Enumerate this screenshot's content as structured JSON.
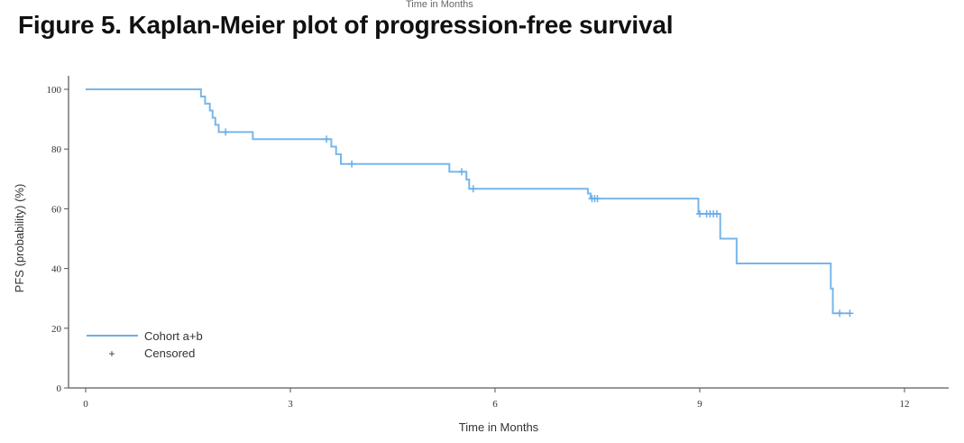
{
  "top_cut_text": "Time in Months",
  "chart_data": {
    "type": "line",
    "subtype": "kaplan-meier step",
    "title": "Figure 5. Kaplan-Meier plot of progression-free survival",
    "xlabel": "Time in Months",
    "ylabel": "PFS (probability) (%)",
    "xlim": [
      0,
      12.6
    ],
    "ylim": [
      0,
      100
    ],
    "xticks": [
      0,
      3,
      6,
      9,
      12
    ],
    "yticks": [
      0,
      20,
      40,
      60,
      80,
      100
    ],
    "grid": false,
    "legend_position": "bottom-left",
    "legend": [
      {
        "label": "Cohort a+b",
        "marker": "line"
      },
      {
        "label": "Censored",
        "marker": "plus"
      }
    ],
    "series": [
      {
        "name": "Cohort a+b",
        "color": "#6aaee8",
        "steps": [
          [
            0,
            100
          ],
          [
            1.69,
            97.6
          ],
          [
            1.75,
            95.2
          ],
          [
            1.82,
            92.9
          ],
          [
            1.86,
            90.5
          ],
          [
            1.9,
            88.1
          ],
          [
            1.95,
            85.7
          ],
          [
            2.45,
            83.3
          ],
          [
            3.6,
            80.8
          ],
          [
            3.67,
            78.3
          ],
          [
            3.74,
            75.0
          ],
          [
            5.33,
            72.4
          ],
          [
            5.58,
            69.8
          ],
          [
            5.62,
            66.7
          ],
          [
            7.36,
            65.1
          ],
          [
            7.4,
            63.4
          ],
          [
            8.98,
            58.3
          ],
          [
            9.3,
            50.0
          ],
          [
            9.54,
            41.7
          ],
          [
            10.92,
            33.3
          ],
          [
            10.95,
            25.0
          ],
          [
            11.2,
            25.0
          ]
        ],
        "censored": [
          [
            2.05,
            85.7
          ],
          [
            3.53,
            83.3
          ],
          [
            3.9,
            75.0
          ],
          [
            5.51,
            72.4
          ],
          [
            5.68,
            66.7
          ],
          [
            7.42,
            63.4
          ],
          [
            7.46,
            63.4
          ],
          [
            7.5,
            63.4
          ],
          [
            9.0,
            58.3
          ],
          [
            9.1,
            58.3
          ],
          [
            9.15,
            58.3
          ],
          [
            9.2,
            58.3
          ],
          [
            9.25,
            58.3
          ],
          [
            11.05,
            25.0
          ],
          [
            11.2,
            25.0
          ]
        ]
      }
    ]
  }
}
